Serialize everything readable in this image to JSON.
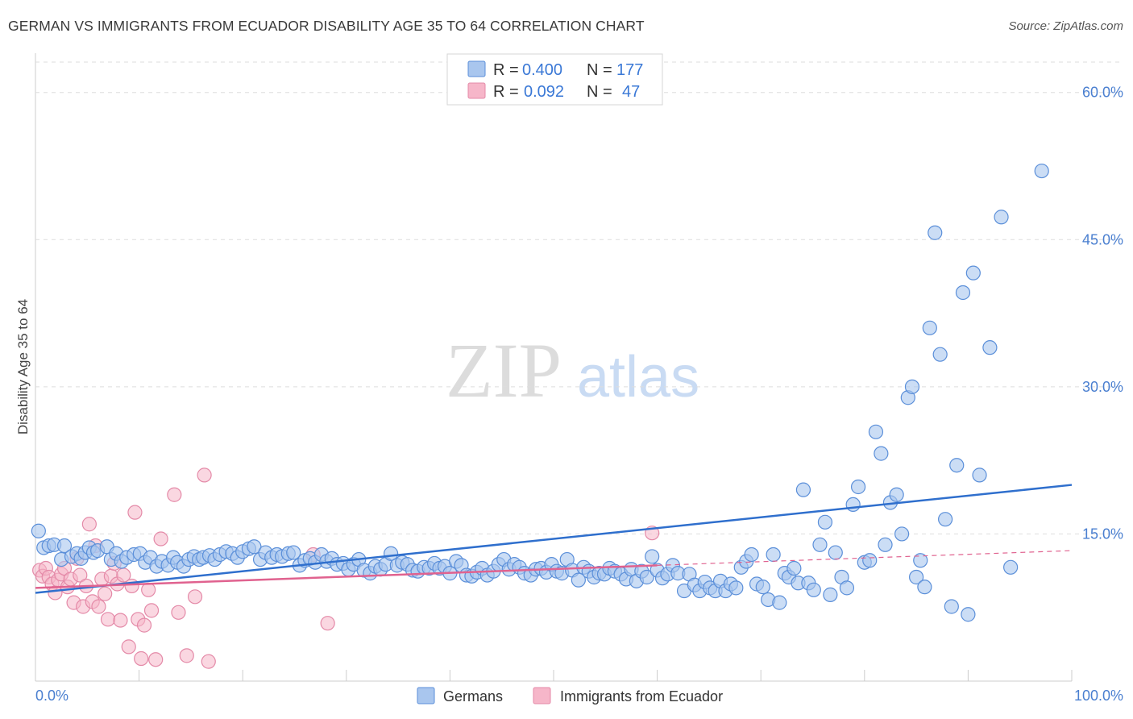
{
  "header": {
    "title": "GERMAN VS IMMIGRANTS FROM ECUADOR DISABILITY AGE 35 TO 64 CORRELATION CHART",
    "source": "Source: ZipAtlas.com"
  },
  "watermark": {
    "zip": "ZIP",
    "atlas": "atlas"
  },
  "legend": {
    "rows": [
      {
        "r_label": "R =",
        "r_value": "0.400",
        "n_label": "N =",
        "n_value": "177"
      },
      {
        "r_label": "R =",
        "r_value": "0.092",
        "n_label": "N =",
        "n_value": "47"
      }
    ]
  },
  "bottom_legend": {
    "germans": "Germans",
    "ecuador": "Immigrants from Ecuador"
  },
  "colors": {
    "blue_fill": "#a9c6ee",
    "blue_stroke": "#5b8fd9",
    "blue_line": "#2f6fcd",
    "pink_fill": "#f6b6c9",
    "pink_stroke": "#e48aa8",
    "pink_line": "#e0628f",
    "axis_text": "#4a7fd0",
    "grid": "#dddddd"
  },
  "chart_data": {
    "type": "scatter",
    "title": "GERMAN VS IMMIGRANTS FROM ECUADOR DISABILITY AGE 35 TO 64 CORRELATION CHART",
    "xlabel": "",
    "ylabel": "Disability Age 35 to 64",
    "xlim": [
      0,
      100
    ],
    "ylim": [
      0,
      64
    ],
    "x_tick_labels": [
      "0.0%",
      "100.0%"
    ],
    "y_ticks": [
      15,
      30,
      45,
      60
    ],
    "y_tick_labels": [
      "15.0%",
      "30.0%",
      "45.0%",
      "60.0%"
    ],
    "grid": true,
    "legend_position": "top-center",
    "series": [
      {
        "name": "Germans",
        "r": 0.4,
        "n": 177,
        "trend": {
          "x": [
            0,
            100
          ],
          "y": [
            9.0,
            20.0
          ]
        },
        "points": [
          [
            0.3,
            15.3
          ],
          [
            0.8,
            13.6
          ],
          [
            1.3,
            13.8
          ],
          [
            1.8,
            13.9
          ],
          [
            2.5,
            12.4
          ],
          [
            2.8,
            13.8
          ],
          [
            3.5,
            12.7
          ],
          [
            4.0,
            13.0
          ],
          [
            4.4,
            12.5
          ],
          [
            4.8,
            13.1
          ],
          [
            5.2,
            13.6
          ],
          [
            5.6,
            13.1
          ],
          [
            6.0,
            13.3
          ],
          [
            6.9,
            13.7
          ],
          [
            7.3,
            12.4
          ],
          [
            7.8,
            13.0
          ],
          [
            8.3,
            12.2
          ],
          [
            8.8,
            12.6
          ],
          [
            9.5,
            12.9
          ],
          [
            10.1,
            13.0
          ],
          [
            10.6,
            12.1
          ],
          [
            11.1,
            12.6
          ],
          [
            11.7,
            11.7
          ],
          [
            12.2,
            12.2
          ],
          [
            12.8,
            11.8
          ],
          [
            13.3,
            12.6
          ],
          [
            13.7,
            12.1
          ],
          [
            14.3,
            11.7
          ],
          [
            14.8,
            12.4
          ],
          [
            15.3,
            12.7
          ],
          [
            15.8,
            12.4
          ],
          [
            16.2,
            12.6
          ],
          [
            16.8,
            12.8
          ],
          [
            17.3,
            12.4
          ],
          [
            17.8,
            12.9
          ],
          [
            18.4,
            13.2
          ],
          [
            19.0,
            13.0
          ],
          [
            19.5,
            12.6
          ],
          [
            20.0,
            13.2
          ],
          [
            20.6,
            13.5
          ],
          [
            21.1,
            13.7
          ],
          [
            21.7,
            12.4
          ],
          [
            22.2,
            13.1
          ],
          [
            22.8,
            12.6
          ],
          [
            23.3,
            12.9
          ],
          [
            23.8,
            12.7
          ],
          [
            24.4,
            13.0
          ],
          [
            24.9,
            13.1
          ],
          [
            25.5,
            11.8
          ],
          [
            26.0,
            12.3
          ],
          [
            26.5,
            12.5
          ],
          [
            27.0,
            12.1
          ],
          [
            27.6,
            12.9
          ],
          [
            28.1,
            12.2
          ],
          [
            28.6,
            12.5
          ],
          [
            29.1,
            11.9
          ],
          [
            29.7,
            12.0
          ],
          [
            30.2,
            11.4
          ],
          [
            30.7,
            11.9
          ],
          [
            31.2,
            12.4
          ],
          [
            31.7,
            11.3
          ],
          [
            32.3,
            11.0
          ],
          [
            32.8,
            11.7
          ],
          [
            33.3,
            11.4
          ],
          [
            33.8,
            11.9
          ],
          [
            34.3,
            13.0
          ],
          [
            34.9,
            11.8
          ],
          [
            35.4,
            12.1
          ],
          [
            35.9,
            11.9
          ],
          [
            36.4,
            11.3
          ],
          [
            36.9,
            11.2
          ],
          [
            37.5,
            11.6
          ],
          [
            38.0,
            11.5
          ],
          [
            38.5,
            12.0
          ],
          [
            39.0,
            11.5
          ],
          [
            39.5,
            11.7
          ],
          [
            40.0,
            11.0
          ],
          [
            40.6,
            12.2
          ],
          [
            41.1,
            11.8
          ],
          [
            41.6,
            10.8
          ],
          [
            42.1,
            10.7
          ],
          [
            42.6,
            11.1
          ],
          [
            43.1,
            11.5
          ],
          [
            43.6,
            10.8
          ],
          [
            44.2,
            11.2
          ],
          [
            44.7,
            11.9
          ],
          [
            45.2,
            12.4
          ],
          [
            45.7,
            11.4
          ],
          [
            46.2,
            11.9
          ],
          [
            46.7,
            11.6
          ],
          [
            47.2,
            11.0
          ],
          [
            47.8,
            10.8
          ],
          [
            48.3,
            11.4
          ],
          [
            48.8,
            11.5
          ],
          [
            49.3,
            11.1
          ],
          [
            49.8,
            11.9
          ],
          [
            50.3,
            11.2
          ],
          [
            50.8,
            11.0
          ],
          [
            51.3,
            12.4
          ],
          [
            51.8,
            11.3
          ],
          [
            52.4,
            10.3
          ],
          [
            52.9,
            11.6
          ],
          [
            53.4,
            11.2
          ],
          [
            53.9,
            10.6
          ],
          [
            54.4,
            11.0
          ],
          [
            54.9,
            10.9
          ],
          [
            55.4,
            11.5
          ],
          [
            55.9,
            11.2
          ],
          [
            56.5,
            10.9
          ],
          [
            57.0,
            10.4
          ],
          [
            57.5,
            11.4
          ],
          [
            58.0,
            10.2
          ],
          [
            58.5,
            11.2
          ],
          [
            59.0,
            10.6
          ],
          [
            59.5,
            12.7
          ],
          [
            60.0,
            11.3
          ],
          [
            60.5,
            10.5
          ],
          [
            61.0,
            10.9
          ],
          [
            61.5,
            11.8
          ],
          [
            62.0,
            11.0
          ],
          [
            62.6,
            9.2
          ],
          [
            63.1,
            10.9
          ],
          [
            63.6,
            9.8
          ],
          [
            64.1,
            9.2
          ],
          [
            64.6,
            10.1
          ],
          [
            65.1,
            9.5
          ],
          [
            65.6,
            9.2
          ],
          [
            66.1,
            10.2
          ],
          [
            66.6,
            9.2
          ],
          [
            67.1,
            9.9
          ],
          [
            67.6,
            9.5
          ],
          [
            68.1,
            11.6
          ],
          [
            68.6,
            12.2
          ],
          [
            69.1,
            12.9
          ],
          [
            69.6,
            9.9
          ],
          [
            70.2,
            9.6
          ],
          [
            70.7,
            8.3
          ],
          [
            71.2,
            12.9
          ],
          [
            71.8,
            8.0
          ],
          [
            72.3,
            11.0
          ],
          [
            72.7,
            10.6
          ],
          [
            73.2,
            11.5
          ],
          [
            73.6,
            10.0
          ],
          [
            74.1,
            19.5
          ],
          [
            74.6,
            10.0
          ],
          [
            75.1,
            9.3
          ],
          [
            75.7,
            13.9
          ],
          [
            76.2,
            16.2
          ],
          [
            76.7,
            8.8
          ],
          [
            77.2,
            13.1
          ],
          [
            77.8,
            10.6
          ],
          [
            78.3,
            9.5
          ],
          [
            78.9,
            18.0
          ],
          [
            79.4,
            19.8
          ],
          [
            80.0,
            12.1
          ],
          [
            80.5,
            12.3
          ],
          [
            81.1,
            25.4
          ],
          [
            81.6,
            23.2
          ],
          [
            82.0,
            13.9
          ],
          [
            82.5,
            18.2
          ],
          [
            83.1,
            19.0
          ],
          [
            83.6,
            15.0
          ],
          [
            84.2,
            28.9
          ],
          [
            84.6,
            30.0
          ],
          [
            85.0,
            10.6
          ],
          [
            85.4,
            12.3
          ],
          [
            85.8,
            9.6
          ],
          [
            86.3,
            36.0
          ],
          [
            86.8,
            45.7
          ],
          [
            87.3,
            33.3
          ],
          [
            87.8,
            16.5
          ],
          [
            88.4,
            7.6
          ],
          [
            88.9,
            22.0
          ],
          [
            89.5,
            39.6
          ],
          [
            90.0,
            6.8
          ],
          [
            90.5,
            41.6
          ],
          [
            91.1,
            21.0
          ],
          [
            92.1,
            34.0
          ],
          [
            93.2,
            47.3
          ],
          [
            94.1,
            11.6
          ],
          [
            97.1,
            52.0
          ]
        ]
      },
      {
        "name": "Immigrants from Ecuador",
        "r": 0.092,
        "n": 47,
        "trend": {
          "x": [
            0,
            60
          ],
          "y": [
            9.5,
            11.8
          ]
        },
        "trend_extension": {
          "x": [
            60,
            100
          ],
          "y": [
            11.8,
            13.3
          ]
        },
        "points": [
          [
            0.4,
            11.3
          ],
          [
            0.7,
            10.7
          ],
          [
            1.0,
            11.5
          ],
          [
            1.3,
            10.6
          ],
          [
            1.6,
            9.9
          ],
          [
            1.9,
            9.0
          ],
          [
            2.2,
            10.3
          ],
          [
            2.5,
            10.9
          ],
          [
            2.8,
            11.5
          ],
          [
            3.1,
            9.6
          ],
          [
            3.4,
            10.4
          ],
          [
            3.7,
            8.0
          ],
          [
            4.0,
            12.5
          ],
          [
            4.3,
            10.8
          ],
          [
            4.6,
            7.6
          ],
          [
            4.9,
            9.7
          ],
          [
            5.2,
            16.0
          ],
          [
            5.5,
            8.1
          ],
          [
            5.8,
            13.8
          ],
          [
            6.1,
            7.6
          ],
          [
            6.4,
            10.4
          ],
          [
            6.7,
            8.9
          ],
          [
            7.0,
            6.3
          ],
          [
            7.3,
            10.7
          ],
          [
            7.6,
            12.0
          ],
          [
            7.9,
            9.9
          ],
          [
            8.2,
            6.2
          ],
          [
            8.5,
            10.8
          ],
          [
            9.0,
            3.5
          ],
          [
            9.3,
            9.7
          ],
          [
            9.6,
            17.2
          ],
          [
            9.9,
            6.3
          ],
          [
            10.2,
            2.3
          ],
          [
            10.5,
            5.7
          ],
          [
            10.9,
            9.3
          ],
          [
            11.2,
            7.2
          ],
          [
            11.6,
            2.2
          ],
          [
            12.1,
            14.5
          ],
          [
            13.4,
            19.0
          ],
          [
            13.8,
            7.0
          ],
          [
            14.6,
            2.6
          ],
          [
            15.4,
            8.6
          ],
          [
            16.3,
            21.0
          ],
          [
            16.7,
            2.0
          ],
          [
            26.8,
            12.9
          ],
          [
            28.2,
            5.9
          ],
          [
            59.5,
            15.1
          ]
        ]
      }
    ]
  }
}
